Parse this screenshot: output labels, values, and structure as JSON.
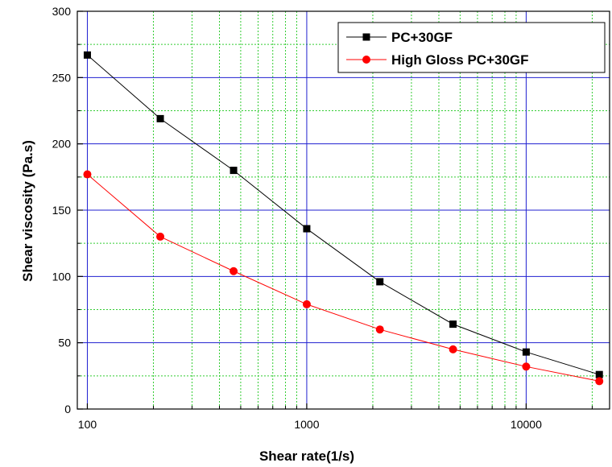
{
  "chart_data": {
    "type": "line",
    "xlabel": "Shear rate(1/s)",
    "ylabel": "Shear viscosity (Pa.s)",
    "xscale": "log",
    "xlim": [
      90,
      24000
    ],
    "ylim": [
      0,
      300
    ],
    "x_ticks": [
      100,
      1000,
      10000
    ],
    "x_tick_labels": [
      "100",
      "1000",
      "10000"
    ],
    "y_ticks": [
      0,
      50,
      100,
      150,
      200,
      250,
      300
    ],
    "y_tick_labels": [
      "0",
      "50",
      "100",
      "150",
      "200",
      "250",
      "300"
    ],
    "grid": true,
    "major_grid_color": "#2020d0",
    "minor_grid_color": "#33cc33",
    "legend_position": "top-right",
    "series": [
      {
        "name": "PC+30GF",
        "color": "#000000",
        "marker": "square",
        "x": [
          100,
          215,
          464,
          1000,
          2154,
          4642,
          10000,
          21544
        ],
        "y": [
          267,
          219,
          180,
          136,
          96,
          64,
          43,
          26
        ]
      },
      {
        "name": "High Gloss PC+30GF",
        "color": "#ff0000",
        "marker": "circle",
        "x": [
          100,
          215,
          464,
          1000,
          2154,
          4642,
          10000,
          21544
        ],
        "y": [
          177,
          130,
          104,
          79,
          60,
          45,
          32,
          21
        ]
      }
    ]
  }
}
